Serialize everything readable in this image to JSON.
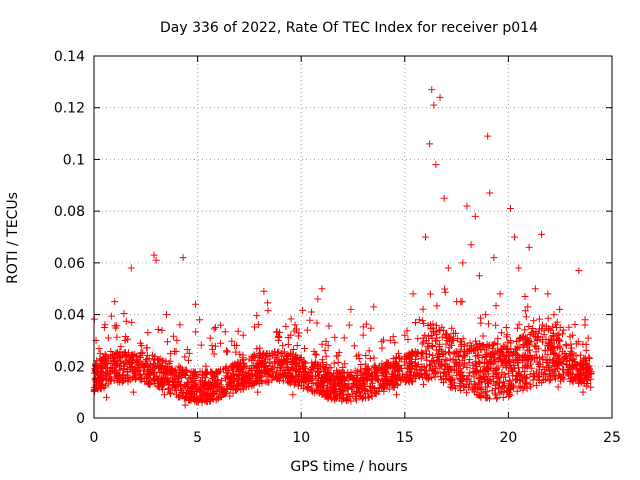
{
  "chart_data": {
    "type": "scatter",
    "title": "Day 336 of 2022, Rate Of TEC Index for receiver p014",
    "xlabel": "GPS time / hours",
    "ylabel": "ROTI / TECUs",
    "xlim": [
      0,
      25
    ],
    "ylim": [
      0,
      0.14
    ],
    "xticks": [
      0,
      5,
      10,
      15,
      20,
      25
    ],
    "xtick_labels": [
      "0",
      "5",
      "10",
      "15",
      "20",
      "25"
    ],
    "yticks": [
      0,
      0.02,
      0.04,
      0.06,
      0.08,
      0.1,
      0.12,
      0.14
    ],
    "ytick_labels": [
      "0",
      "0.02",
      "0.04",
      "0.06",
      "0.08",
      "0.1",
      "0.12",
      "0.14"
    ],
    "grid": true,
    "marker": "+",
    "color": "#ff0000",
    "series": [
      {
        "name": "ROTI",
        "x": [
          0.1,
          0.3,
          0.5,
          0.8,
          1.0,
          1.3,
          1.5,
          1.8,
          2.0,
          2.3,
          2.6,
          2.9,
          3.0,
          3.2,
          3.5,
          3.8,
          4.0,
          4.3,
          4.4,
          4.6,
          4.9,
          5.1,
          5.4,
          5.7,
          6.0,
          6.4,
          6.8,
          7.2,
          7.6,
          8.0,
          8.2,
          8.5,
          8.9,
          9.3,
          9.7,
          10.1,
          10.5,
          10.8,
          11.0,
          11.3,
          11.7,
          12.1,
          12.4,
          12.8,
          13.2,
          13.5,
          13.9,
          14.3,
          14.7,
          15.0,
          15.4,
          15.7,
          16.0,
          16.2,
          16.3,
          16.4,
          16.5,
          16.7,
          16.9,
          17.1,
          17.3,
          17.5,
          17.8,
          18.0,
          18.2,
          18.4,
          18.6,
          18.9,
          19.0,
          19.1,
          19.3,
          19.6,
          19.9,
          20.1,
          20.3,
          20.5,
          20.8,
          21.0,
          21.3,
          21.6,
          21.9,
          22.2,
          22.5,
          22.8,
          23.1,
          23.4,
          23.7,
          23.9,
          1.6,
          2.9,
          4.1,
          8.3,
          10.9,
          12.3,
          13.4,
          14.9,
          16.3,
          16.5,
          17.6,
          18.4,
          19.0,
          20.2,
          21.8,
          0.6,
          1.9,
          3.4,
          5.2,
          6.6,
          7.9,
          9.6,
          11.4,
          13.0,
          14.6,
          15.9,
          17.2,
          18.7,
          20.7,
          22.4,
          23.6
        ],
        "y": [
          0.012,
          0.025,
          0.035,
          0.018,
          0.045,
          0.022,
          0.03,
          0.058,
          0.015,
          0.028,
          0.033,
          0.063,
          0.061,
          0.02,
          0.04,
          0.017,
          0.03,
          0.062,
          0.005,
          0.025,
          0.044,
          0.038,
          0.02,
          0.028,
          0.018,
          0.026,
          0.021,
          0.032,
          0.019,
          0.027,
          0.049,
          0.024,
          0.03,
          0.022,
          0.036,
          0.02,
          0.041,
          0.046,
          0.05,
          0.028,
          0.024,
          0.021,
          0.042,
          0.023,
          0.019,
          0.043,
          0.027,
          0.03,
          0.025,
          0.032,
          0.048,
          0.038,
          0.07,
          0.106,
          0.127,
          0.121,
          0.098,
          0.124,
          0.085,
          0.058,
          0.03,
          0.045,
          0.06,
          0.082,
          0.067,
          0.078,
          0.055,
          0.04,
          0.109,
          0.087,
          0.062,
          0.048,
          0.035,
          0.081,
          0.07,
          0.058,
          0.047,
          0.066,
          0.05,
          0.071,
          0.048,
          0.04,
          0.035,
          0.028,
          0.032,
          0.057,
          0.038,
          0.02,
          0.018,
          0.015,
          0.02,
          0.014,
          0.018,
          0.016,
          0.015,
          0.017,
          0.022,
          0.02,
          0.024,
          0.021,
          0.019,
          0.018,
          0.017,
          0.008,
          0.01,
          0.009,
          0.007,
          0.011,
          0.01,
          0.009,
          0.012,
          0.008,
          0.009,
          0.013,
          0.012,
          0.011,
          0.014,
          0.012,
          0.01
        ]
      }
    ]
  }
}
